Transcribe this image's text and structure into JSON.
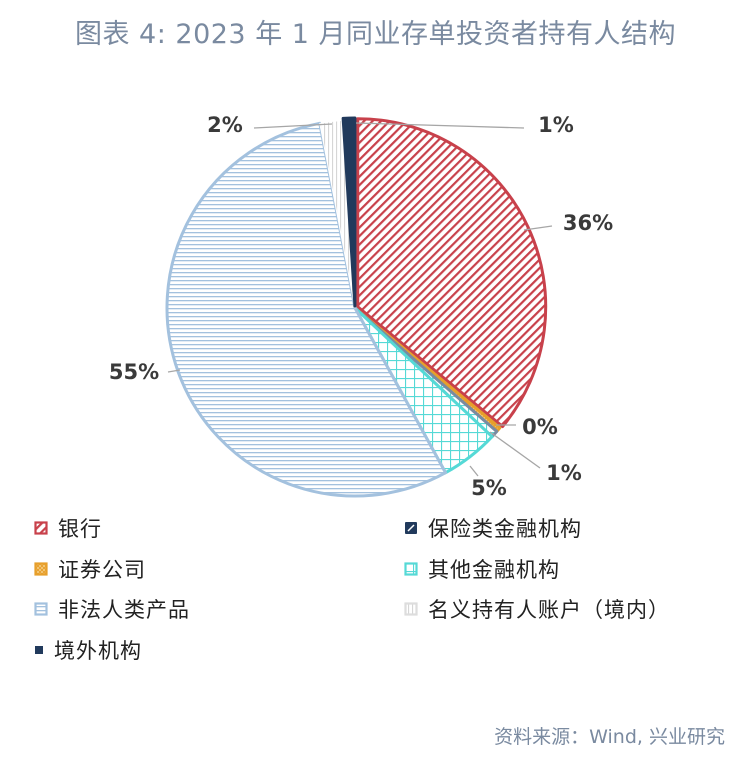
{
  "title": "图表 4:   2023 年 1 月同业存单投资者持有人结构",
  "source": "资料来源：Wind, 兴业研究",
  "chart_data": {
    "type": "pie",
    "title": "2023 年 1 月同业存单投资者持有人结构",
    "start_angle_deg": 0,
    "direction": "clockwise",
    "slices": [
      {
        "name": "银行",
        "value": 36,
        "label": "36%",
        "color": "#c8414b",
        "pattern": "diagonal"
      },
      {
        "name": "证券公司",
        "value": 0.4,
        "label": "0%",
        "color": "#e79f2b",
        "pattern": "cross-diagonal"
      },
      {
        "name": "保险类金融机构",
        "value": 0.6,
        "label": "1%",
        "color": "#7a8aa0",
        "pattern": "grid"
      },
      {
        "name": "其他金融机构",
        "value": 5,
        "label": "5%",
        "color": "#55d9d6",
        "pattern": "grid"
      },
      {
        "name": "非法人类产品",
        "value": 55,
        "label": "55%",
        "color": "#a3c1de",
        "pattern": "horizontal"
      },
      {
        "name": "名义持有人账户（境内）",
        "value": 2,
        "label": "2%",
        "color": "#eeeeee",
        "pattern": "vertical"
      },
      {
        "name": "境外机构",
        "value": 1,
        "label": "1%",
        "color": "#213a5c",
        "pattern": "solid"
      }
    ],
    "legend": {
      "placement": "bottom",
      "items": [
        {
          "name": "银行",
          "color": "#c8414b",
          "pattern": "diagonal"
        },
        {
          "name": "保险类金融机构",
          "color": "#213a5c",
          "pattern": "dark-stripe"
        },
        {
          "name": "证券公司",
          "color": "#e79f2b",
          "pattern": "cross-diagonal"
        },
        {
          "name": "其他金融机构",
          "color": "#55d9d6",
          "pattern": "grid"
        },
        {
          "name": "非法人类产品",
          "color": "#a3c1de",
          "pattern": "horizontal"
        },
        {
          "name": "名义持有人账户（境内）",
          "color": "#dddddd",
          "pattern": "vertical"
        },
        {
          "name": "境外机构",
          "color": "#213a5c",
          "pattern": "solid"
        }
      ]
    }
  }
}
